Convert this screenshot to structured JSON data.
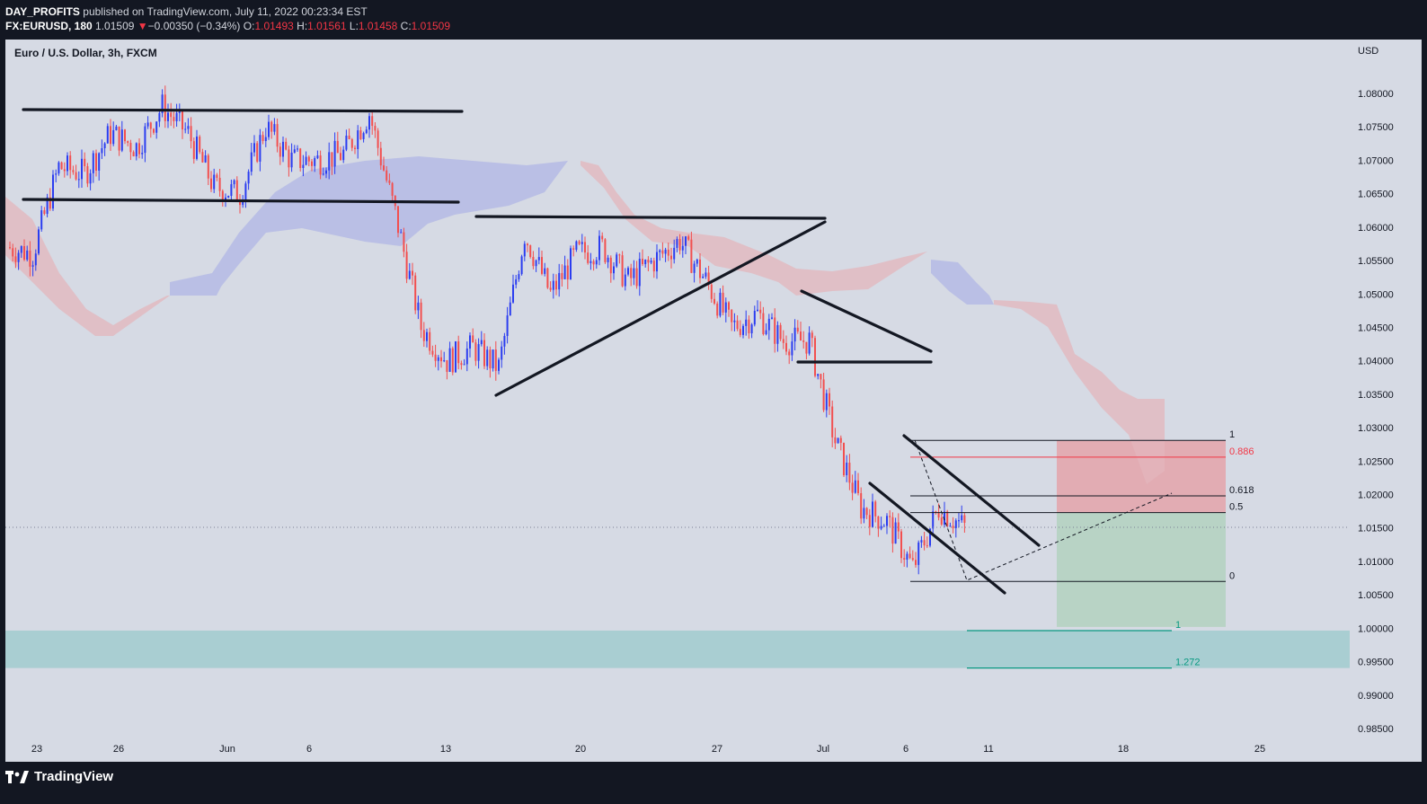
{
  "header": {
    "author": "DAY_PROFITS",
    "published": "published on TradingView.com, July 11, 2022 00:23:34 EST",
    "symbol": "FX:EURUSD, 180",
    "last": "1.01509",
    "change_arrow": "▼",
    "change": "−0.00350 (−0.34%)",
    "o_label": "O:",
    "o": "1.01493",
    "h_label": "H:",
    "h": "1.01561",
    "l_label": "L:",
    "l": "1.01458",
    "c_label": "C:",
    "c": "1.01509"
  },
  "pane_title": "Euro / U.S. Dollar, 3h, FXCM",
  "currency": "USD",
  "colors": {
    "up_candle": "#2b3df0",
    "down_candle": "#f24f4f",
    "cloud_bull": "#b0b6e6",
    "cloud_bear": "#e3b6bc",
    "panel_bg": "#d6dae4",
    "support_zone": "#a6cdd1",
    "stop_zone": "#e3a6ad",
    "target_zone": "#b5d2c1"
  },
  "price_axis": [
    "1.08000",
    "1.07500",
    "1.07000",
    "1.06500",
    "1.06000",
    "1.05500",
    "1.05000",
    "1.04500",
    "1.04000",
    "1.03500",
    "1.03000",
    "1.02500",
    "1.02000",
    "1.01500",
    "1.01000",
    "1.00500",
    "1.00000",
    "0.99500",
    "0.99000",
    "0.98500"
  ],
  "time_axis": [
    "23",
    "26",
    "Jun",
    "6",
    "13",
    "20",
    "27",
    "Jul",
    "6",
    "11",
    "18",
    "25"
  ],
  "fib_levels": [
    {
      "label": "1",
      "price": 1.0281,
      "color": "#131722"
    },
    {
      "label": "0.886",
      "price": 1.0256,
      "color": "#f23645"
    },
    {
      "label": "0.618",
      "price": 1.0198,
      "color": "#131722"
    },
    {
      "label": "0.5",
      "price": 1.0173,
      "color": "#131722"
    },
    {
      "label": "0",
      "price": 1.007,
      "color": "#131722"
    }
  ],
  "ext_levels": [
    {
      "label": "1",
      "price": 0.99965,
      "color": "#089981"
    },
    {
      "label": "1.272",
      "price": 0.99405,
      "color": "#089981"
    }
  ],
  "current_price": 1.01509,
  "footer": {
    "logo_text": "TradingView",
    "logo_icon": "tradingview-logo-icon"
  },
  "chart_data": {
    "type": "candlestick",
    "symbol": "EURUSD",
    "timeframe": "3h",
    "ylim": [
      0.984,
      1.0855
    ],
    "close_path": [
      [
        "May 22",
        1.057
      ],
      [
        "May 23",
        1.056
      ],
      [
        "May 24",
        1.069
      ],
      [
        "May 25",
        1.068
      ],
      [
        "May 26",
        1.074
      ],
      [
        "May 27",
        1.072
      ],
      [
        "May 30",
        1.078
      ],
      [
        "May 31",
        1.074
      ],
      [
        "Jun 1",
        1.066
      ],
      [
        "Jun 2",
        1.065
      ],
      [
        "Jun 3",
        1.075
      ],
      [
        "Jun 6",
        1.07
      ],
      [
        "Jun 7",
        1.07
      ],
      [
        "Jun 8",
        1.071
      ],
      [
        "Jun 9",
        1.077
      ],
      [
        "Jun 10",
        1.062
      ],
      [
        "Jun 13",
        1.045
      ],
      [
        "Jun 14",
        1.04
      ],
      [
        "Jun 15",
        1.042
      ],
      [
        "Jun 16",
        1.039
      ],
      [
        "Jun 17",
        1.059
      ],
      [
        "Jun 20",
        1.05
      ],
      [
        "Jun 21",
        1.056
      ],
      [
        "Jun 22",
        1.057
      ],
      [
        "Jun 23",
        1.052
      ],
      [
        "Jun 24",
        1.055
      ],
      [
        "Jun 27",
        1.058
      ],
      [
        "Jun 28",
        1.052
      ],
      [
        "Jun 29",
        1.045
      ],
      [
        "Jun 30",
        1.047
      ],
      [
        "Jul 1",
        1.043
      ],
      [
        "Jul 4",
        1.043
      ],
      [
        "Jul 5",
        1.028
      ],
      [
        "Jul 6",
        1.018
      ],
      [
        "Jul 7",
        1.016
      ],
      [
        "Jul 8",
        1.009
      ],
      [
        "Jul 8 end",
        1.018
      ],
      [
        "Jul 11",
        1.0151
      ]
    ]
  }
}
